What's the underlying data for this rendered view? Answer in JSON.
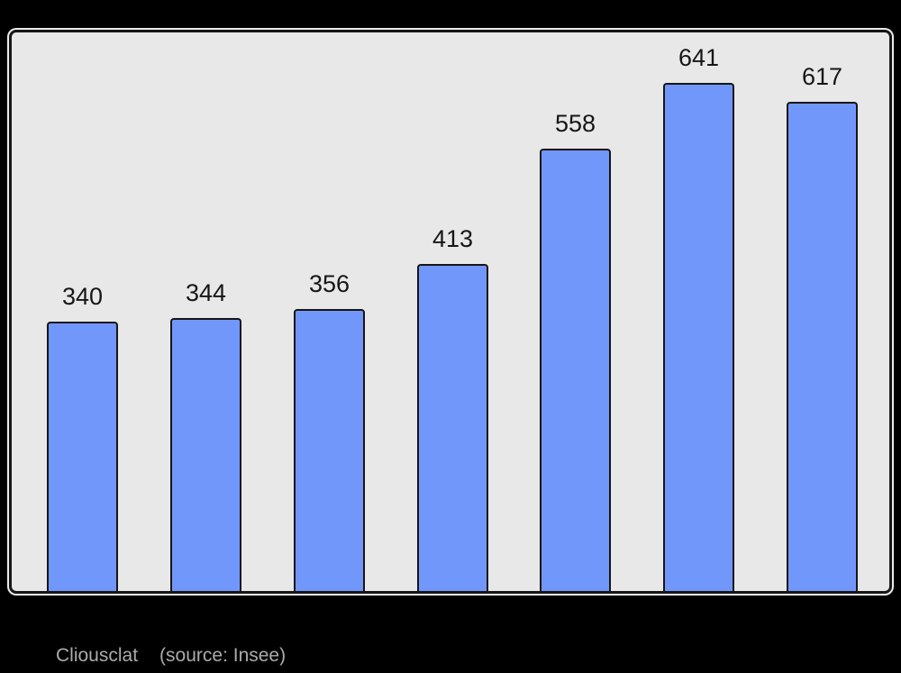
{
  "page": {
    "background": "#000000"
  },
  "plot": {
    "background": "#E8E8E8",
    "border_color": "#161616",
    "outer_outline_color": "#FFFFFF"
  },
  "caption": {
    "commune": "Cliousclat",
    "source": "(source: Insee)",
    "color": "#ABABAB"
  },
  "chart_data": {
    "type": "bar",
    "title": "",
    "xlabel": "",
    "ylabel": "",
    "values": [
      340,
      344,
      356,
      413,
      558,
      641,
      617
    ],
    "data_labels": [
      "340",
      "344",
      "356",
      "413",
      "558",
      "641",
      "617"
    ],
    "x_axis_labels_visible": false,
    "y_axis_visible": false,
    "ylim": [
      0,
      705
    ],
    "grid": false,
    "legend_position": "none",
    "bar_color": "#7297FA",
    "bar_border_color": "#161616",
    "value_label_color": "#161616"
  }
}
